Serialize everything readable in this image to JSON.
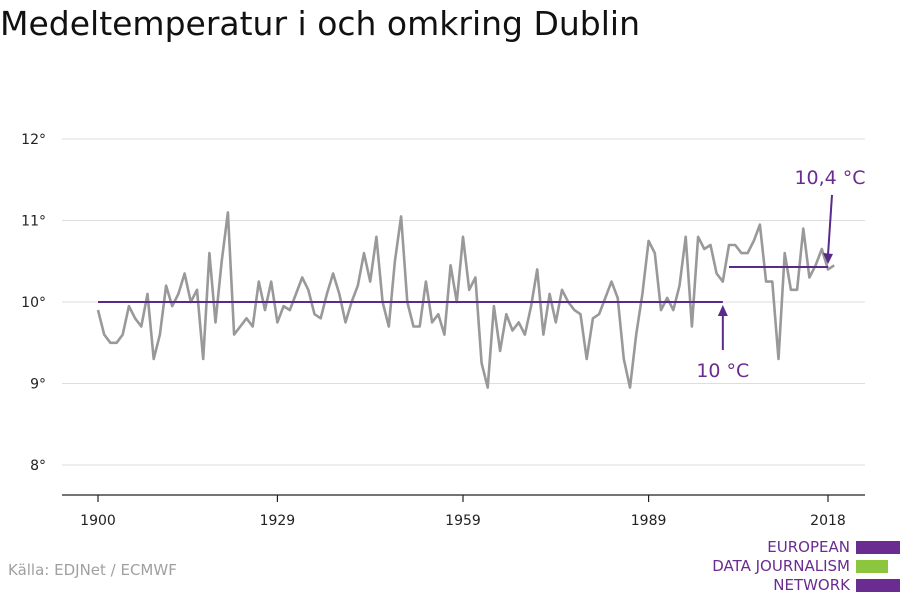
{
  "chart_data": {
    "type": "line",
    "title": "Medeltemperatur i och omkring Dublin",
    "ylim": [
      7.6,
      12.3
    ],
    "xlim": [
      1897,
      2024
    ],
    "y_ticks": [
      8,
      9,
      10,
      11,
      12
    ],
    "y_tick_labels": [
      "8°",
      "9°",
      "10°",
      "11°",
      "12°"
    ],
    "x_ticks": [
      1900,
      1929,
      1959,
      1989,
      2018
    ],
    "x_tick_labels": [
      "1900",
      "1929",
      "1959",
      "1989",
      "2018"
    ],
    "grid": true,
    "series": [
      {
        "color": "#999999",
        "x": [
          1900,
          1901,
          1902,
          1903,
          1904,
          1905,
          1906,
          1907,
          1908,
          1909,
          1910,
          1911,
          1912,
          1913,
          1914,
          1915,
          1916,
          1917,
          1918,
          1919,
          1920,
          1921,
          1922,
          1923,
          1924,
          1925,
          1926,
          1927,
          1928,
          1929,
          1930,
          1931,
          1932,
          1933,
          1934,
          1935,
          1936,
          1937,
          1938,
          1939,
          1940,
          1941,
          1942,
          1943,
          1944,
          1945,
          1946,
          1947,
          1948,
          1949,
          1950,
          1951,
          1952,
          1953,
          1954,
          1955,
          1956,
          1957,
          1958,
          1959,
          1960,
          1961,
          1962,
          1963,
          1964,
          1965,
          1966,
          1967,
          1968,
          1969,
          1970,
          1971,
          1972,
          1973,
          1974,
          1975,
          1976,
          1977,
          1978,
          1979,
          1980,
          1981,
          1982,
          1983,
          1984,
          1985,
          1986,
          1987,
          1988,
          1989,
          1990,
          1991,
          1992,
          1993,
          1994,
          1995,
          1996,
          1997,
          1998,
          1999,
          2000,
          2001,
          2002,
          2003,
          2004,
          2005,
          2006,
          2007,
          2008,
          2009,
          2010,
          2011,
          2012,
          2013,
          2014,
          2015,
          2016,
          2017,
          2018,
          2019
        ],
        "y": [
          9.9,
          9.6,
          9.5,
          9.5,
          9.6,
          9.95,
          9.8,
          9.7,
          10.1,
          9.3,
          9.6,
          10.2,
          9.95,
          10.1,
          10.35,
          10.0,
          10.15,
          9.3,
          10.6,
          9.75,
          10.5,
          11.1,
          9.6,
          9.7,
          9.8,
          9.7,
          10.25,
          9.9,
          10.25,
          9.75,
          9.95,
          9.9,
          10.1,
          10.3,
          10.15,
          9.85,
          9.8,
          10.1,
          10.35,
          10.1,
          9.75,
          10.0,
          10.2,
          10.6,
          10.25,
          10.8,
          10.0,
          9.7,
          10.5,
          11.05,
          10.0,
          9.7,
          9.7,
          10.25,
          9.75,
          9.85,
          9.6,
          10.45,
          10.0,
          10.8,
          10.15,
          10.3,
          9.25,
          8.95,
          9.95,
          9.4,
          9.85,
          9.65,
          9.75,
          9.6,
          9.95,
          10.4,
          9.6,
          10.1,
          9.75,
          10.15,
          10.0,
          9.9,
          9.85,
          9.3,
          9.8,
          9.85,
          10.05,
          10.25,
          10.05,
          9.3,
          8.95,
          9.6,
          10.1,
          10.75,
          10.6,
          9.9,
          10.05,
          9.9,
          10.2,
          10.8,
          9.7,
          10.8,
          10.65,
          10.7,
          10.35,
          10.25,
          10.7,
          10.7,
          10.6,
          10.6,
          10.75,
          10.95,
          10.25,
          10.25,
          9.3,
          10.6,
          10.15,
          10.15,
          10.9,
          10.3,
          10.45,
          10.65,
          10.4,
          10.45
        ]
      }
    ],
    "reference_lines": [
      {
        "label": "10 °C",
        "value": 10.0,
        "x_start": 1900,
        "x_end": 2001,
        "color": "#5a2a8a"
      },
      {
        "label": "10,4 °C",
        "value": 10.43,
        "x_start": 2002,
        "x_end": 2018,
        "color": "#5a2a8a"
      }
    ]
  },
  "source": "Källa: EDJNet / ECMWF",
  "logo": {
    "lines": [
      "EUROPEAN",
      "DATA JOURNALISM",
      "NETWORK"
    ],
    "colors": {
      "primary": "#6b2c91",
      "accent": "#8cc63f"
    }
  }
}
